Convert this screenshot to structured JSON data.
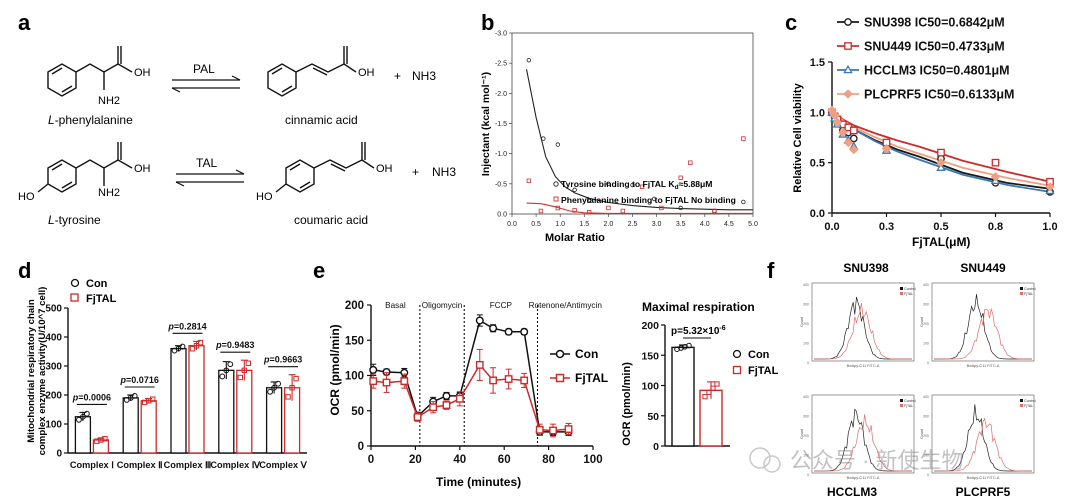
{
  "panels": {
    "a": {
      "letter": "a",
      "reaction1": {
        "substrate": "L-phenylalanine",
        "substrate_prefix": "L",
        "substrate_rest": "-phenylalanine",
        "enzyme": "PAL",
        "product": "cinnamic acid",
        "plus": "+",
        "byproduct": "NH3",
        "nh2": "NH2",
        "oh": "OH"
      },
      "reaction2": {
        "substrate": "L-tyrosine",
        "substrate_prefix": "L",
        "substrate_rest": "-tyrosine",
        "enzyme": "TAL",
        "product": "coumaric acid",
        "plus": "+",
        "byproduct": "NH3",
        "nh2": "NH2",
        "oh": "OH",
        "ho": "HO"
      }
    },
    "b": {
      "letter": "b",
      "xlabel": "Molar Ratio",
      "ylabel": "Injectant (kcal mol⁻¹)",
      "legend": [
        {
          "label": "Tyrosine binding to FjTAL  K",
          "sub": "d",
          "after": "≈5.88μM",
          "color": "#222222"
        },
        {
          "label": "Phenylalanine binding to FjTAL No binding",
          "sub": "",
          "after": "",
          "color": "#cc3333"
        }
      ]
    },
    "c": {
      "letter": "c",
      "xlabel": "FjTAL(μM)",
      "ylabel": "Relative Cell viability",
      "legend": [
        {
          "name": "SNU398",
          "label": "SNU398 IC50=0.6842μM",
          "color": "#1a1a1a",
          "marker": "circle"
        },
        {
          "name": "SNU449",
          "label": "SNU449 IC50=0.4733μM",
          "color": "#cc2b2b",
          "marker": "square"
        },
        {
          "name": "HCCLM3",
          "label": "HCCLM3 IC50=0.4801μM",
          "color": "#3a78b5",
          "marker": "triangle"
        },
        {
          "name": "PLCPRF5",
          "label": "PLCPRF5 IC50=0.6133μM",
          "color": "#f0a080",
          "marker": "diamond"
        }
      ]
    },
    "d": {
      "letter": "d",
      "ylabel_line1": "Mitochondrial respiratory chain",
      "ylabel_line2": "complex enzyme activity(U/10^7 cell)",
      "legend": [
        {
          "label": "Con",
          "color": "#111111"
        },
        {
          "label": "FjTAL",
          "color": "#cc2b2b"
        }
      ],
      "pvalues": [
        "p=0.0006",
        "p=0.0716",
        "p=0.2814",
        "p=0.9483",
        "p=0.9663"
      ]
    },
    "e": {
      "letter": "e",
      "xlabel": "Time (minutes)",
      "ylabel": "OCR (pmol/min)",
      "phases": [
        "Basal",
        "Oligomycin",
        "FCCP",
        "Rotenone/Antimycin"
      ],
      "legend": [
        {
          "label": "Con",
          "color": "#111111"
        },
        {
          "label": "FjTAL",
          "color": "#cc2b2b"
        }
      ],
      "inset": {
        "title": "Maximal respiration",
        "ylabel": "OCR (pmol/min)",
        "pvalue": "p=5.32×10",
        "pvalue_exp": "-6",
        "legend": [
          {
            "label": "Con",
            "color": "#111111"
          },
          {
            "label": "FjTAL",
            "color": "#cc2b2b"
          }
        ]
      }
    },
    "f": {
      "letter": "f",
      "titles_top": [
        "SNU398",
        "SNU449"
      ],
      "titles_bottom": [
        "HCCLM3",
        "PLCPRF5"
      ],
      "mini_xlabel": "Bodipy-C11 FITC-A",
      "mini_ylabel": "Count",
      "mini_legend": [
        "Control",
        "FjTAL"
      ]
    }
  },
  "watermark": "公众号 · 新使生物",
  "chart_data": [
    {
      "id": "b",
      "type": "scatter",
      "title": "",
      "xlabel": "Molar Ratio",
      "ylabel": "Injectant (kcal mol⁻¹)",
      "xlim": [
        0,
        5.0
      ],
      "ylim": [
        -3.0,
        0.0
      ],
      "xticks": [
        0.0,
        0.5,
        1.0,
        1.5,
        2.0,
        2.5,
        3.0,
        3.5,
        4.0,
        4.5,
        5.0
      ],
      "yticks": [
        0.0,
        -0.5,
        -1.0,
        -1.5,
        -2.0,
        -2.5,
        -3.0
      ],
      "series": [
        {
          "name": "Tyrosine binding to FjTAL",
          "color": "#222222",
          "x": [
            0.35,
            0.65,
            0.95,
            1.3,
            1.6,
            2.0,
            2.5,
            2.95,
            3.5,
            4.2,
            4.8
          ],
          "y": [
            -2.55,
            -1.25,
            -1.15,
            -0.4,
            -0.22,
            -0.5,
            -0.48,
            -0.25,
            -0.1,
            -0.05,
            -0.2
          ],
          "fit_x": [
            0.3,
            0.5,
            0.7,
            0.9,
            1.1,
            1.3,
            1.6,
            2.0,
            2.5,
            3.0,
            3.5,
            4.0,
            4.5,
            5.0
          ],
          "fit_y": [
            -2.4,
            -1.6,
            -0.95,
            -0.62,
            -0.45,
            -0.35,
            -0.26,
            -0.19,
            -0.14,
            -0.11,
            -0.09,
            -0.08,
            -0.07,
            -0.07
          ]
        },
        {
          "name": "Phenylalanine binding to FjTAL",
          "color": "#cc3333",
          "x": [
            0.35,
            0.6,
            0.95,
            1.3,
            1.6,
            2.0,
            2.3,
            2.7,
            3.1,
            3.5,
            3.7,
            4.2,
            4.8
          ],
          "y": [
            -0.55,
            -0.05,
            -0.1,
            -0.06,
            -0.03,
            -0.1,
            -0.05,
            -0.45,
            -0.1,
            -0.6,
            -0.85,
            -0.05,
            -1.25
          ],
          "fit_x": [
            0.3,
            0.6,
            0.9,
            1.2,
            1.5,
            2.0,
            3.0,
            4.0,
            5.0
          ],
          "fit_y": [
            -0.18,
            -0.17,
            -0.12,
            -0.05,
            -0.02,
            -0.01,
            -0.01,
            -0.01,
            -0.01
          ]
        }
      ]
    },
    {
      "id": "c",
      "type": "scatter",
      "title": "",
      "xlabel": "FjTAL(μM)",
      "ylabel": "Relative Cell viability",
      "xlim": [
        0.0,
        1.0
      ],
      "ylim": [
        0.0,
        1.5
      ],
      "xticks": [
        0.0,
        0.25,
        0.5,
        0.75,
        1.0
      ],
      "yticks": [
        0.0,
        0.5,
        1.0,
        1.5
      ],
      "x": [
        0.0,
        0.0125,
        0.025,
        0.05,
        0.075,
        0.1,
        0.25,
        0.5,
        0.75,
        1.0
      ],
      "series": [
        {
          "name": "SNU398",
          "ic50": 0.6842,
          "values": [
            1.0,
            0.95,
            0.9,
            0.82,
            0.8,
            0.74,
            0.68,
            0.54,
            0.3,
            0.21
          ]
        },
        {
          "name": "SNU449",
          "ic50": 0.4733,
          "values": [
            1.0,
            0.96,
            0.93,
            0.88,
            0.85,
            0.82,
            0.7,
            0.6,
            0.5,
            0.31
          ]
        },
        {
          "name": "HCCLM3",
          "ic50": 0.4801,
          "values": [
            1.0,
            0.94,
            0.88,
            0.78,
            0.72,
            0.66,
            0.62,
            0.45,
            0.32,
            0.22
          ]
        },
        {
          "name": "PLCPRF5",
          "ic50": 0.6133,
          "values": [
            1.02,
            0.97,
            0.9,
            0.8,
            0.7,
            0.63,
            0.64,
            0.5,
            0.36,
            0.26
          ]
        }
      ],
      "fits": [
        {
          "name": "SNU398",
          "values": [
            1.0,
            0.91,
            0.83,
            0.72,
            0.63,
            0.56,
            0.4,
            0.3,
            0.24
          ]
        },
        {
          "name": "SNU449",
          "values": [
            1.0,
            0.93,
            0.87,
            0.79,
            0.72,
            0.66,
            0.52,
            0.41,
            0.31
          ]
        },
        {
          "name": "HCCLM3",
          "values": [
            1.0,
            0.91,
            0.83,
            0.71,
            0.61,
            0.53,
            0.38,
            0.28,
            0.21
          ]
        },
        {
          "name": "PLCPRF5",
          "values": [
            1.0,
            0.92,
            0.85,
            0.75,
            0.66,
            0.59,
            0.45,
            0.35,
            0.27
          ]
        }
      ],
      "fit_x": [
        0.0,
        0.05,
        0.1,
        0.2,
        0.3,
        0.4,
        0.6,
        0.8,
        1.0
      ]
    },
    {
      "id": "d",
      "type": "bar",
      "title": "",
      "xlabel": "",
      "ylabel": "Mitochondrial respiratory chain complex enzyme activity(U/10^7 cell)",
      "categories": [
        "Complex Ⅰ",
        "Complex Ⅱ",
        "Complex Ⅲ",
        "Complex Ⅳ",
        "Complex Ⅴ"
      ],
      "ylim": [
        0,
        500
      ],
      "yticks": [
        0,
        100,
        200,
        300,
        400,
        500
      ],
      "series": [
        {
          "name": "Con",
          "values": [
            125,
            190,
            360,
            285,
            225
          ],
          "errors": [
            15,
            10,
            10,
            30,
            20
          ]
        },
        {
          "name": "FjTAL",
          "values": [
            45,
            180,
            370,
            285,
            225
          ],
          "errors": [
            6,
            8,
            15,
            35,
            45
          ]
        }
      ]
    },
    {
      "id": "e-main",
      "type": "line",
      "title": "",
      "xlabel": "Time (minutes)",
      "ylabel": "OCR (pmol/min)",
      "xlim": [
        0,
        100
      ],
      "ylim": [
        0,
        200
      ],
      "xticks": [
        0,
        20,
        40,
        60,
        80,
        100
      ],
      "yticks": [
        0,
        50,
        100,
        150,
        200
      ],
      "phase_boundaries": [
        22,
        42,
        75
      ],
      "x": [
        1,
        7,
        15,
        21,
        28,
        34,
        40,
        49,
        55,
        62,
        69,
        76,
        82,
        89
      ],
      "series": [
        {
          "name": "Con",
          "values": [
            108,
            105,
            104,
            42,
            63,
            71,
            71,
            178,
            167,
            162,
            162,
            20,
            20,
            20
          ],
          "errors": [
            8,
            4,
            6,
            6,
            6,
            5,
            5,
            8,
            5,
            4,
            4,
            5,
            5,
            5
          ]
        },
        {
          "name": "FjTAL",
          "values": [
            92,
            90,
            92,
            41,
            55,
            58,
            67,
            115,
            93,
            95,
            93,
            23,
            22,
            24
          ],
          "errors": [
            10,
            14,
            10,
            6,
            8,
            6,
            10,
            22,
            18,
            14,
            10,
            8,
            9,
            8
          ]
        }
      ]
    },
    {
      "id": "e-inset",
      "type": "bar",
      "title": "Maximal respiration",
      "xlabel": "",
      "ylabel": "OCR (pmol/min)",
      "categories": [
        "Con",
        "FjTAL"
      ],
      "ylim": [
        0,
        200
      ],
      "yticks": [
        0,
        50,
        100,
        150,
        200
      ],
      "values": [
        163,
        92
      ],
      "errors": [
        4,
        14
      ]
    }
  ]
}
